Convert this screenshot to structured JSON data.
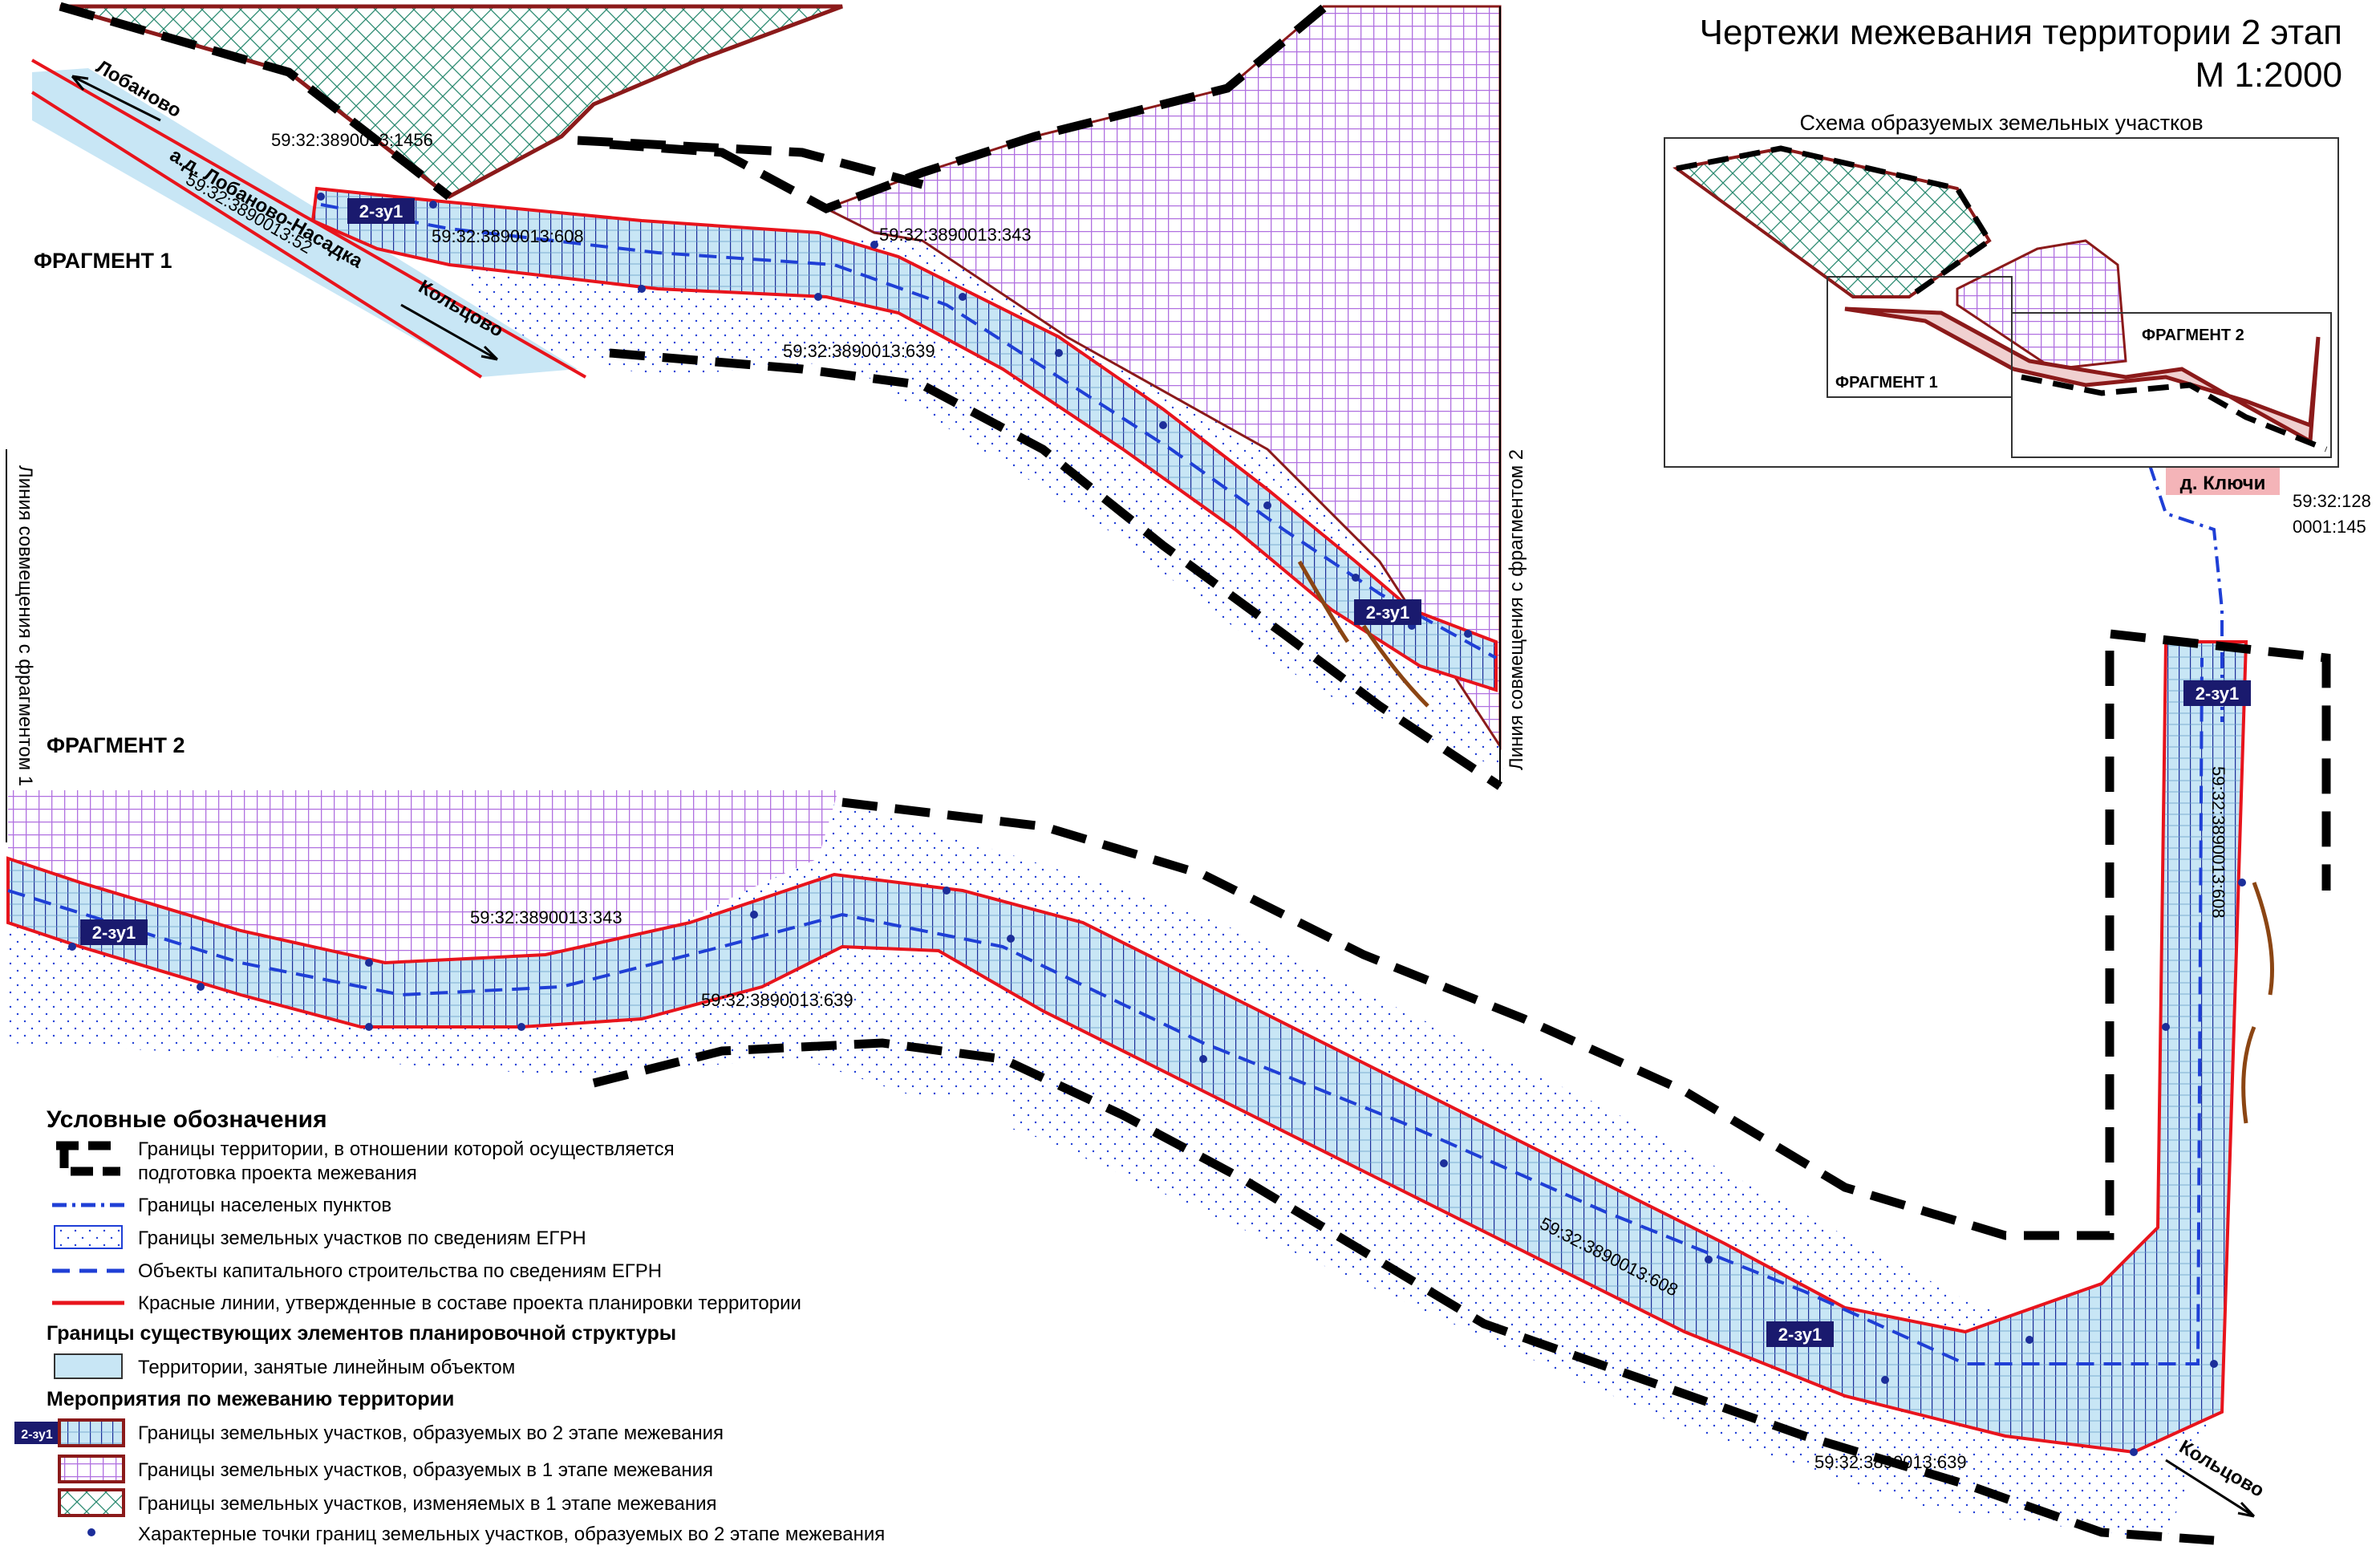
{
  "title": {
    "line1": "Чертежи межевания территории 2 этап",
    "line2": "М 1:2000"
  },
  "inset": {
    "title": "Схема образуемых земельных участков",
    "fragment1": "ФРАГМЕНТ 1",
    "fragment2": "ФРАГМЕНТ 2"
  },
  "fragments": {
    "f1": "ФРАГМЕНТ 1",
    "f2": "ФРАГМЕНТ 2"
  },
  "combine_lines": {
    "left": "Линия совмещения с фрагментом 1",
    "right": "Линия совмещения с фрагментом 2"
  },
  "places": {
    "klyuchi": "д. Ключи",
    "lobanovo": "Лобаново",
    "lobanovo_nasadka": "а.д. Лобаново-Насадка",
    "koltsovo_top": "Кольцово",
    "koltsovo_bottom": "Кольцово"
  },
  "parcels": {
    "p1456": "59:32:3890013:1456",
    "p52": "59:32:3890013:52",
    "p608_f1": "59:32:3890013:608",
    "p343_f1": "59:32:3890013:343",
    "p639_f1": "59:32:3890013:639",
    "p343_f2": "59:32:3890013:343",
    "p639_f2": "59:32:3890013:639",
    "p608_f2": "59:32:3890013:608",
    "p608_vertical": "59:32:3890013:608",
    "p639_bottom": "59:32:3890013:639",
    "p128": "59:32:128",
    "p145": "0001:145"
  },
  "zu_labels": {
    "zu1": "2-зу1",
    "zu2": "2-зу1",
    "zu3": "2-зу1",
    "zu4": "2-зу1",
    "zu5": "2-зу1",
    "legend": "2-зу1"
  },
  "legend": {
    "title": "Условные обозначения",
    "item1_line1": "Границы территории, в отношении которой осуществляется",
    "item1_line2": "подготовка проекта межевания",
    "item2": "Границы населеных пунктов",
    "item3": "Границы земельных участков по сведениям ЕГРН",
    "item4": "Объекты капитального строительства по сведениям ЕГРН",
    "item5": "Красные линии, утвержденные в составе проекта планировки территории",
    "section2": "Границы существующих элементов планировочной структуры",
    "item6": "Территории, занятые линейным объектом",
    "section3": "Мероприятия по межеванию территории",
    "item7": "Границы земельных участков, образуемых во 2 этапе межевания",
    "item8": "Границы земельных участков, образуемых в 1 этапе межевания",
    "item9": "Границы земельных участков, изменяемых в 1 этапе межевания",
    "item10": "Характерные точки границ земельных участков, образуемых во 2 этапе межевания"
  },
  "colors": {
    "red_line": "#e8141c",
    "maroon": "#8b1a1a",
    "blue": "#1f3fd6",
    "corridor": "#c8e6f5",
    "purple_grid": "#b070e0",
    "green_grid": "#2a8a70",
    "label_bg": "#1a1a6e",
    "klyuchi_bg": "#f4b4b8"
  }
}
